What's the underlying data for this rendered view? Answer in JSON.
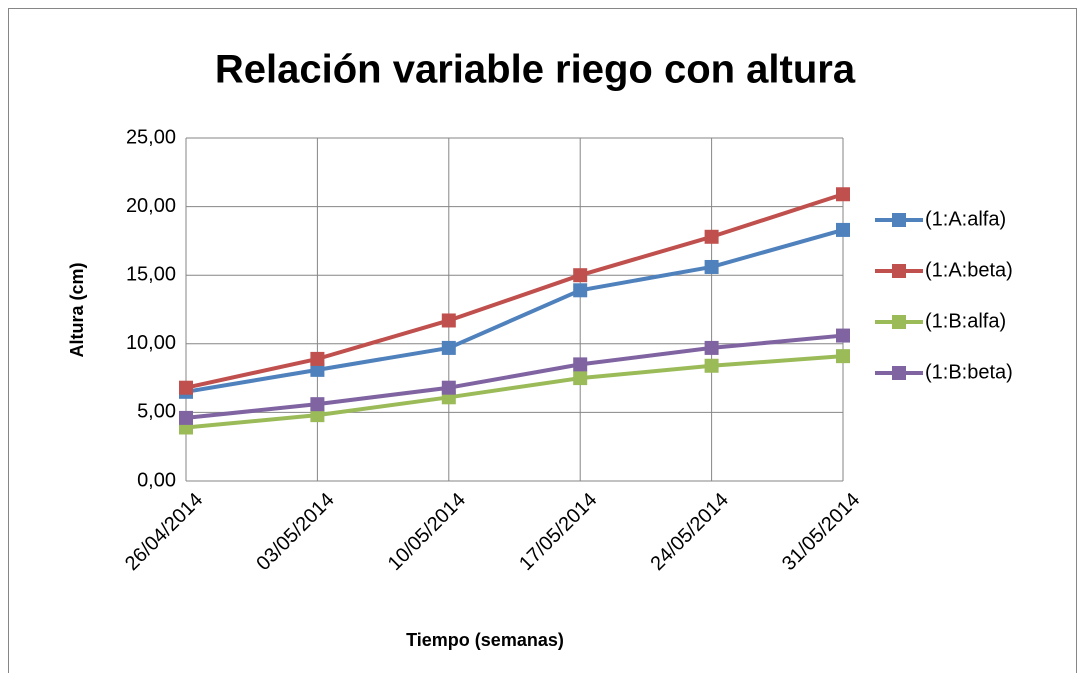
{
  "chart_data": {
    "type": "line",
    "title": "Relación variable riego con altura",
    "x_label": "Tiempo (semanas)",
    "y_label": "Altura (cm)",
    "categories": [
      "26/04/2014",
      "03/05/2014",
      "10/05/2014",
      "17/05/2014",
      "24/05/2014",
      "31/05/2014"
    ],
    "series": [
      {
        "name": "(1:A:alfa)",
        "color": "#4f81bd",
        "values": [
          6.5,
          8.1,
          9.7,
          13.9,
          15.6,
          18.3
        ]
      },
      {
        "name": "(1:A:beta)",
        "color": "#c0504d",
        "values": [
          6.8,
          8.9,
          11.7,
          15.0,
          17.8,
          20.9
        ]
      },
      {
        "name": "(1:B:alfa)",
        "color": "#9bbb59",
        "values": [
          3.9,
          4.8,
          6.1,
          7.5,
          8.4,
          9.1
        ]
      },
      {
        "name": "(1:B:beta)",
        "color": "#8064a2",
        "values": [
          4.6,
          5.6,
          6.8,
          8.5,
          9.7,
          10.6
        ]
      }
    ],
    "ylim": [
      0,
      25
    ],
    "yticks": [
      {
        "value": 0,
        "label": "0,00"
      },
      {
        "value": 5,
        "label": "5,00"
      },
      {
        "value": 10,
        "label": "10,00"
      },
      {
        "value": 15,
        "label": "15,00"
      },
      {
        "value": 20,
        "label": "20,00"
      },
      {
        "value": 25,
        "label": "25,00"
      }
    ],
    "grid": true,
    "legend": "right"
  }
}
